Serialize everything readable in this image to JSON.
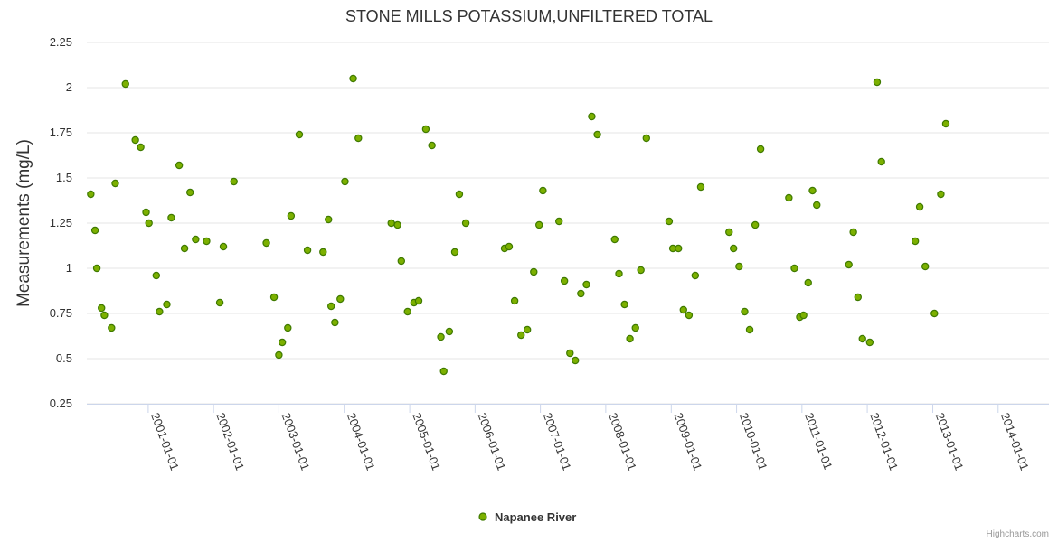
{
  "chart_data": {
    "type": "scatter",
    "title": "STONE MILLS POTASSIUM,UNFILTERED TOTAL",
    "ylabel": "Measurements (mg/L)",
    "xlabel": "",
    "ylim": [
      0.25,
      2.25
    ],
    "yticks": [
      "0.25",
      "0.5",
      "0.75",
      "1",
      "1.25",
      "1.5",
      "1.75",
      "2",
      "2.25"
    ],
    "xlim": [
      "2000-01-24",
      "2014-10-12"
    ],
    "xticks": [
      "2001-01-01",
      "2002-01-01",
      "2003-01-01",
      "2004-01-01",
      "2005-01-01",
      "2006-01-01",
      "2007-01-01",
      "2008-01-01",
      "2009-01-01",
      "2010-01-01",
      "2011-01-01",
      "2012-01-01",
      "2013-01-01",
      "2014-01-01"
    ],
    "legend": "bottom-center",
    "grid": true,
    "marker_color": "#7cb000",
    "marker_edge": "#3f7a00",
    "series": [
      {
        "name": "Napanee River",
        "points": [
          [
            "2000-02-15",
            1.41
          ],
          [
            "2000-03-10",
            1.21
          ],
          [
            "2000-03-20",
            1.0
          ],
          [
            "2000-04-15",
            0.78
          ],
          [
            "2000-05-01",
            0.74
          ],
          [
            "2000-06-10",
            0.67
          ],
          [
            "2000-07-01",
            1.47
          ],
          [
            "2000-08-27",
            2.02
          ],
          [
            "2000-10-21",
            1.71
          ],
          [
            "2000-11-20",
            1.67
          ],
          [
            "2000-12-20",
            1.31
          ],
          [
            "2001-01-05",
            1.25
          ],
          [
            "2001-02-15",
            0.96
          ],
          [
            "2001-03-05",
            0.76
          ],
          [
            "2001-04-15",
            0.8
          ],
          [
            "2001-05-10",
            1.28
          ],
          [
            "2001-06-23",
            1.57
          ],
          [
            "2001-07-23",
            1.11
          ],
          [
            "2001-08-23",
            1.42
          ],
          [
            "2001-09-23",
            1.16
          ],
          [
            "2001-11-23",
            1.15
          ],
          [
            "2002-02-05",
            0.81
          ],
          [
            "2002-02-25",
            1.12
          ],
          [
            "2002-04-25",
            1.48
          ],
          [
            "2002-10-23",
            1.14
          ],
          [
            "2002-12-05",
            0.84
          ],
          [
            "2003-01-01",
            0.52
          ],
          [
            "2003-01-20",
            0.59
          ],
          [
            "2003-02-20",
            0.67
          ],
          [
            "2003-03-10",
            1.29
          ],
          [
            "2003-04-25",
            1.74
          ],
          [
            "2003-06-10",
            1.1
          ],
          [
            "2003-09-05",
            1.09
          ],
          [
            "2003-10-05",
            1.27
          ],
          [
            "2003-10-20",
            0.79
          ],
          [
            "2003-11-10",
            0.7
          ],
          [
            "2003-12-10",
            0.83
          ],
          [
            "2004-01-05",
            1.48
          ],
          [
            "2004-02-20",
            2.05
          ],
          [
            "2004-03-20",
            1.72
          ],
          [
            "2004-09-20",
            1.25
          ],
          [
            "2004-10-25",
            1.24
          ],
          [
            "2004-11-15",
            1.04
          ],
          [
            "2004-12-20",
            0.76
          ],
          [
            "2005-01-25",
            0.81
          ],
          [
            "2005-02-20",
            0.82
          ],
          [
            "2005-04-01",
            1.77
          ],
          [
            "2005-05-05",
            1.68
          ],
          [
            "2005-06-24",
            0.62
          ],
          [
            "2005-07-10",
            0.43
          ],
          [
            "2005-08-10",
            0.65
          ],
          [
            "2005-09-10",
            1.09
          ],
          [
            "2005-10-05",
            1.41
          ],
          [
            "2005-11-10",
            1.25
          ],
          [
            "2006-06-15",
            1.11
          ],
          [
            "2006-07-10",
            1.12
          ],
          [
            "2006-08-10",
            0.82
          ],
          [
            "2006-09-15",
            0.63
          ],
          [
            "2006-10-20",
            0.66
          ],
          [
            "2006-11-25",
            0.98
          ],
          [
            "2006-12-25",
            1.24
          ],
          [
            "2007-01-15",
            1.43
          ],
          [
            "2007-04-15",
            1.26
          ],
          [
            "2007-05-15",
            0.93
          ],
          [
            "2007-06-15",
            0.53
          ],
          [
            "2007-07-15",
            0.49
          ],
          [
            "2007-08-15",
            0.86
          ],
          [
            "2007-09-15",
            0.91
          ],
          [
            "2007-10-15",
            1.84
          ],
          [
            "2007-11-15",
            1.74
          ],
          [
            "2008-02-20",
            1.16
          ],
          [
            "2008-03-15",
            0.97
          ],
          [
            "2008-04-15",
            0.8
          ],
          [
            "2008-05-15",
            0.61
          ],
          [
            "2008-06-15",
            0.67
          ],
          [
            "2008-07-15",
            0.99
          ],
          [
            "2008-08-15",
            1.72
          ],
          [
            "2008-12-20",
            1.26
          ],
          [
            "2009-01-10",
            1.11
          ],
          [
            "2009-02-10",
            1.11
          ],
          [
            "2009-03-10",
            0.77
          ],
          [
            "2009-04-10",
            0.74
          ],
          [
            "2009-05-15",
            0.96
          ],
          [
            "2009-06-15",
            1.45
          ],
          [
            "2009-11-20",
            1.2
          ],
          [
            "2009-12-15",
            1.11
          ],
          [
            "2010-01-15",
            1.01
          ],
          [
            "2010-02-15",
            0.76
          ],
          [
            "2010-03-15",
            0.66
          ],
          [
            "2010-04-15",
            1.24
          ],
          [
            "2010-05-15",
            1.66
          ],
          [
            "2010-10-20",
            1.39
          ],
          [
            "2010-11-20",
            1.0
          ],
          [
            "2010-12-20",
            0.73
          ],
          [
            "2011-01-10",
            0.74
          ],
          [
            "2011-02-05",
            0.92
          ],
          [
            "2011-03-01",
            1.43
          ],
          [
            "2011-03-25",
            1.35
          ],
          [
            "2011-09-20",
            1.02
          ],
          [
            "2011-10-15",
            1.2
          ],
          [
            "2011-11-10",
            0.84
          ],
          [
            "2011-12-05",
            0.61
          ],
          [
            "2012-01-15",
            0.59
          ],
          [
            "2012-02-25",
            2.03
          ],
          [
            "2012-03-20",
            1.59
          ],
          [
            "2012-09-25",
            1.15
          ],
          [
            "2012-10-20",
            1.34
          ],
          [
            "2012-11-20",
            1.01
          ],
          [
            "2013-01-10",
            0.75
          ],
          [
            "2013-02-15",
            1.41
          ],
          [
            "2013-03-15",
            1.8
          ]
        ]
      }
    ],
    "credit": "Highcharts.com"
  }
}
